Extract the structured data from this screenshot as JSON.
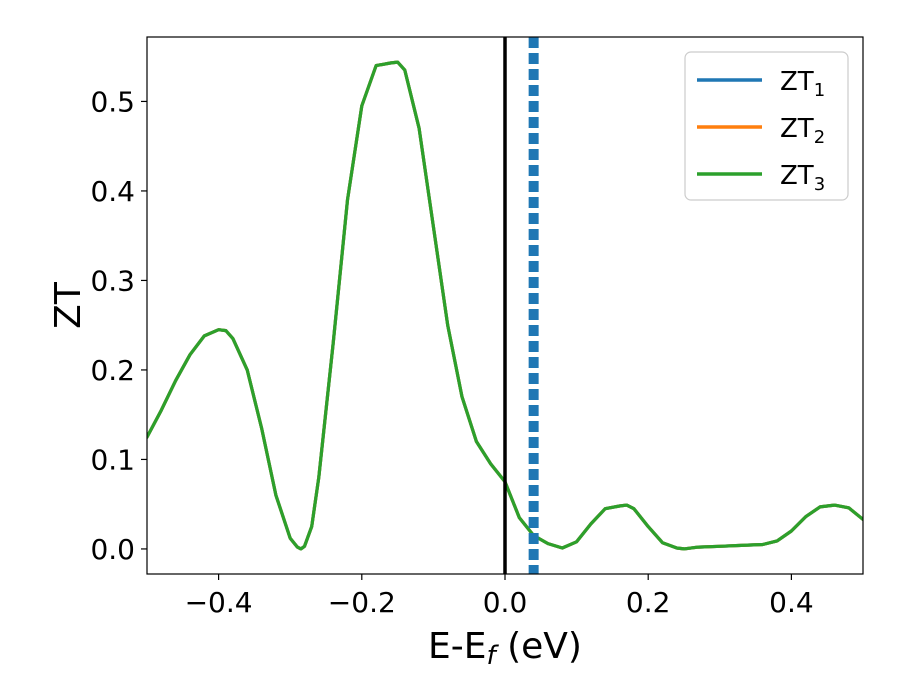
{
  "chart_data": {
    "type": "line",
    "xlabel": "E-E",
    "xlabel_sub": "f",
    "xlabel_unit": " (eV)",
    "ylabel": "ZT",
    "xlim": [
      -0.5,
      0.5
    ],
    "ylim": [
      -0.028,
      0.572
    ],
    "xticks": [
      -0.4,
      -0.2,
      0.0,
      0.2,
      0.4
    ],
    "xtick_labels": [
      "−0.4",
      "−0.2",
      "0.0",
      "0.2",
      "0.4"
    ],
    "yticks": [
      0.0,
      0.1,
      0.2,
      0.3,
      0.4,
      0.5
    ],
    "ytick_labels": [
      "0.0",
      "0.1",
      "0.2",
      "0.3",
      "0.4",
      "0.5"
    ],
    "legend_position": "top-right",
    "grid": false,
    "vlines": [
      {
        "x": 0.0,
        "color": "#000000",
        "style": "solid"
      },
      {
        "x": 0.04,
        "color": "#1f77b4",
        "style": "dashed"
      }
    ],
    "x": [
      -0.5,
      -0.48,
      -0.46,
      -0.44,
      -0.42,
      -0.4,
      -0.39,
      -0.38,
      -0.36,
      -0.34,
      -0.32,
      -0.3,
      -0.29,
      -0.285,
      -0.28,
      -0.27,
      -0.26,
      -0.24,
      -0.22,
      -0.2,
      -0.18,
      -0.16,
      -0.15,
      -0.14,
      -0.12,
      -0.1,
      -0.08,
      -0.06,
      -0.04,
      -0.02,
      0.0,
      0.02,
      0.04,
      0.06,
      0.08,
      0.1,
      0.12,
      0.14,
      0.16,
      0.17,
      0.18,
      0.2,
      0.22,
      0.24,
      0.25,
      0.27,
      0.3,
      0.33,
      0.36,
      0.38,
      0.4,
      0.42,
      0.44,
      0.46,
      0.48,
      0.5
    ],
    "series": [
      {
        "name": "ZT",
        "sub": "1",
        "color": "#1f77b4",
        "values": [
          0.125,
          0.155,
          0.188,
          0.217,
          0.238,
          0.245,
          0.244,
          0.235,
          0.2,
          0.135,
          0.06,
          0.012,
          0.002,
          0.0,
          0.003,
          0.025,
          0.08,
          0.23,
          0.39,
          0.495,
          0.54,
          0.543,
          0.544,
          0.535,
          0.47,
          0.36,
          0.25,
          0.17,
          0.12,
          0.095,
          0.075,
          0.035,
          0.015,
          0.006,
          0.001,
          0.008,
          0.028,
          0.045,
          0.048,
          0.049,
          0.045,
          0.025,
          0.007,
          0.001,
          0.0,
          0.002,
          0.003,
          0.004,
          0.005,
          0.009,
          0.02,
          0.036,
          0.047,
          0.049,
          0.046,
          0.033
        ]
      },
      {
        "name": "ZT",
        "sub": "2",
        "color": "#ff7f0e",
        "values": [
          0.125,
          0.155,
          0.188,
          0.217,
          0.238,
          0.245,
          0.244,
          0.235,
          0.2,
          0.135,
          0.06,
          0.012,
          0.002,
          0.0,
          0.003,
          0.025,
          0.08,
          0.23,
          0.39,
          0.495,
          0.54,
          0.543,
          0.544,
          0.535,
          0.47,
          0.36,
          0.25,
          0.17,
          0.12,
          0.095,
          0.075,
          0.035,
          0.015,
          0.006,
          0.001,
          0.008,
          0.028,
          0.045,
          0.048,
          0.049,
          0.045,
          0.025,
          0.007,
          0.001,
          0.0,
          0.002,
          0.003,
          0.004,
          0.005,
          0.009,
          0.02,
          0.036,
          0.047,
          0.049,
          0.046,
          0.033
        ]
      },
      {
        "name": "ZT",
        "sub": "3",
        "color": "#2ca02c",
        "values": [
          0.125,
          0.155,
          0.188,
          0.217,
          0.238,
          0.245,
          0.244,
          0.235,
          0.2,
          0.135,
          0.06,
          0.012,
          0.002,
          0.0,
          0.003,
          0.025,
          0.08,
          0.23,
          0.39,
          0.495,
          0.54,
          0.543,
          0.544,
          0.535,
          0.47,
          0.36,
          0.25,
          0.17,
          0.12,
          0.095,
          0.075,
          0.035,
          0.015,
          0.006,
          0.001,
          0.008,
          0.028,
          0.045,
          0.048,
          0.049,
          0.045,
          0.025,
          0.007,
          0.001,
          0.0,
          0.002,
          0.003,
          0.004,
          0.005,
          0.009,
          0.02,
          0.036,
          0.047,
          0.049,
          0.046,
          0.033
        ]
      }
    ]
  }
}
